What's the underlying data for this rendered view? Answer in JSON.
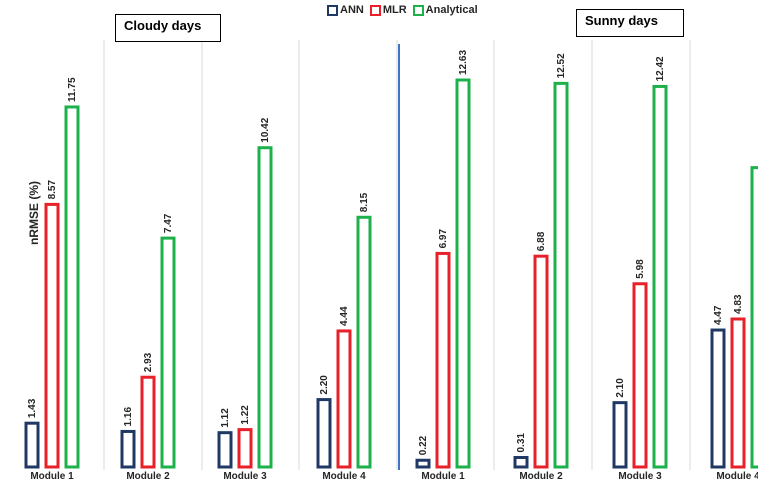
{
  "chart_data": {
    "type": "bar",
    "ylabel": "nRMSE (%)",
    "ylim": [
      0,
      13.5
    ],
    "legend": {
      "placement": "top"
    },
    "series": [
      {
        "name": "ANN",
        "color": "#1f3864"
      },
      {
        "name": "MLR",
        "color": "#e8202a"
      },
      {
        "name": "Analytical",
        "color": "#1db14b"
      }
    ],
    "panels": [
      {
        "title": "Cloudy days",
        "categories": [
          "Module 1",
          "Module 2",
          "Module 3",
          "Module 4"
        ],
        "values": {
          "ANN": [
            1.43,
            1.16,
            1.12,
            2.2
          ],
          "MLR": [
            8.57,
            2.93,
            1.22,
            4.44
          ],
          "Analytical": [
            11.75,
            7.47,
            10.42,
            8.15
          ]
        }
      },
      {
        "title": "Sunny days",
        "categories": [
          "Module 1",
          "Module 2",
          "Module 3",
          "Module 4"
        ],
        "values": {
          "ANN": [
            0.22,
            0.31,
            2.1,
            4.47
          ],
          "MLR": [
            6.97,
            6.88,
            5.98,
            4.83
          ],
          "Analytical": [
            12.63,
            12.52,
            12.42,
            9.77
          ]
        }
      }
    ],
    "labels": {
      "ANN": [
        "1.43",
        "1.16",
        "1.12",
        "2.20",
        "0.22",
        "0.31",
        "2.10",
        "4.47"
      ],
      "MLR": [
        "8.57",
        "2.93",
        "1.22",
        "4.44",
        "6.97",
        "6.88",
        "5.98",
        "4.83"
      ],
      "Analytical": [
        "11.75",
        "7.47",
        "10.42",
        "8.15",
        "12.63",
        "12.52",
        "12.42",
        ""
      ]
    },
    "module_labels": [
      "Module 1",
      "Module 2",
      "Module 3",
      "Module 4",
      "Module 1",
      "Module 2",
      "Module 3",
      "Module 4"
    ]
  }
}
